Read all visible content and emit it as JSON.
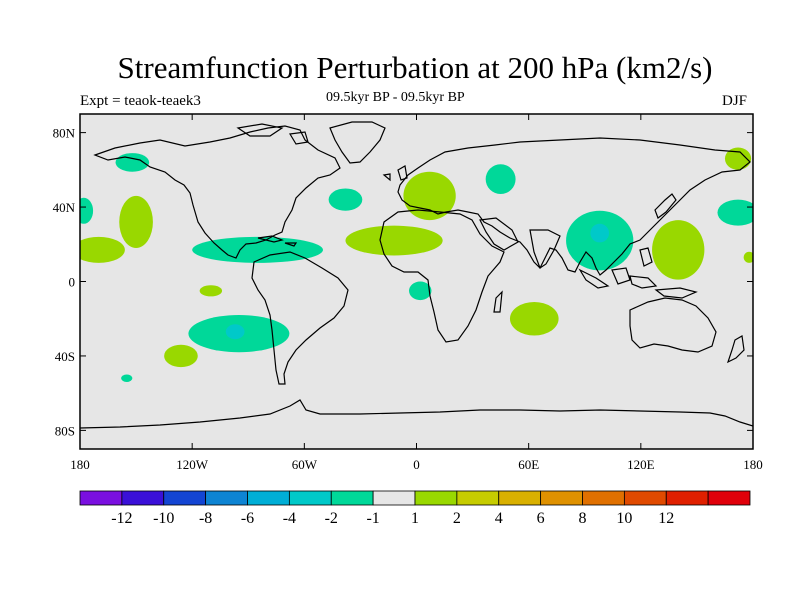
{
  "header": {
    "title": "Streamfunction Perturbation at 200 hPa (km2/s)",
    "left_label": "Expt = teaok-teaek3",
    "center_label": "09.5kyr BP - 09.5kyr BP",
    "right_label": "DJF"
  },
  "axes": {
    "lat_ticks": [
      {
        "label": "80N",
        "lat": 80
      },
      {
        "label": "40N",
        "lat": 40
      },
      {
        "label": "0",
        "lat": 0
      },
      {
        "label": "40S",
        "lat": -40
      },
      {
        "label": "80S",
        "lat": -80
      }
    ],
    "lon_ticks": [
      {
        "label": "180",
        "lon": -180
      },
      {
        "label": "120W",
        "lon": -120
      },
      {
        "label": "60W",
        "lon": -60
      },
      {
        "label": "0",
        "lon": 0
      },
      {
        "label": "60E",
        "lon": 60
      },
      {
        "label": "120E",
        "lon": 120
      },
      {
        "label": "180",
        "lon": 180
      }
    ],
    "lon_range": [
      -180,
      180
    ],
    "lat_range": [
      -90,
      90
    ]
  },
  "colorbar": {
    "colors": [
      "#7a0fe0",
      "#3a10d8",
      "#1345d3",
      "#0e84d3",
      "#00aed6",
      "#00c9c9",
      "#00d899",
      "#e6e6e6",
      "#99d800",
      "#c6cc00",
      "#d9b000",
      "#df9100",
      "#e07000",
      "#e04a00",
      "#e02000",
      "#e0000a"
    ],
    "labels": [
      "-12",
      "-10",
      "-8",
      "-6",
      "-4",
      "-2",
      "-1",
      "1",
      "2",
      "4",
      "6",
      "8",
      "10",
      "12"
    ]
  },
  "anomaly_regions": [
    {
      "name": "Arctic Alaska",
      "level": "-1",
      "color": "#00d899",
      "center": [
        -152,
        64
      ],
      "radius": [
        9,
        5
      ]
    },
    {
      "name": "North Pacific east",
      "level": "1",
      "color": "#99d800",
      "center": [
        -150,
        32
      ],
      "radius": [
        9,
        14
      ]
    },
    {
      "name": "North Pacific west edge",
      "level": "-1",
      "color": "#00d899",
      "center": [
        -178,
        38
      ],
      "radius": [
        5,
        7
      ]
    },
    {
      "name": "Tropical east Pacific",
      "level": "1",
      "color": "#99d800",
      "center": [
        -170,
        17
      ],
      "radius": [
        14,
        7
      ]
    },
    {
      "name": "Central America Caribbean",
      "level": "-1",
      "color": "#00d899",
      "center": [
        -85,
        17
      ],
      "radius": [
        35,
        7
      ]
    },
    {
      "name": "North Atlantic",
      "level": "-1",
      "color": "#00d899",
      "center": [
        -38,
        44
      ],
      "radius": [
        9,
        6
      ]
    },
    {
      "name": "Subtropical Atlantic to North Africa",
      "level": "1",
      "color": "#99d800",
      "center": [
        -12,
        22
      ],
      "radius": [
        26,
        8
      ]
    },
    {
      "name": "Europe",
      "level": "1",
      "color": "#99d800",
      "center": [
        7,
        46
      ],
      "radius": [
        14,
        13
      ]
    },
    {
      "name": "Caspian region",
      "level": "-1",
      "color": "#00d899",
      "center": [
        45,
        55
      ],
      "radius": [
        8,
        8
      ]
    },
    {
      "name": "South Atlantic off Africa",
      "level": "-1",
      "color": "#00d899",
      "center": [
        2,
        -5
      ],
      "radius": [
        6,
        5
      ]
    },
    {
      "name": "Southeast Pacific",
      "level": "-1",
      "color": "#00d899",
      "center": [
        -95,
        -28
      ],
      "radius": [
        27,
        10
      ]
    },
    {
      "name": "Southeast Pacific core",
      "level": "-2",
      "color": "#00c9c9",
      "center": [
        -97,
        -27
      ],
      "radius": [
        5,
        4
      ]
    },
    {
      "name": "East Pacific small",
      "level": "1",
      "color": "#99d800",
      "center": [
        -110,
        -5
      ],
      "radius": [
        6,
        3
      ]
    },
    {
      "name": "South Pacific",
      "level": "1",
      "color": "#99d800",
      "center": [
        -126,
        -40
      ],
      "radius": [
        9,
        6
      ]
    },
    {
      "name": "Southern Pacific small",
      "level": "-1",
      "color": "#00d899",
      "center": [
        -155,
        -52
      ],
      "radius": [
        3,
        2
      ]
    },
    {
      "name": "Indian Ocean",
      "level": "1",
      "color": "#99d800",
      "center": [
        63,
        -20
      ],
      "radius": [
        13,
        9
      ]
    },
    {
      "name": "South Asia",
      "level": "-1",
      "color": "#00d899",
      "center": [
        98,
        22
      ],
      "radius": [
        18,
        16
      ]
    },
    {
      "name": "South Asia core",
      "level": "-2",
      "color": "#00c9c9",
      "center": [
        98,
        26
      ],
      "radius": [
        5,
        5
      ]
    },
    {
      "name": "West Pacific",
      "level": "1",
      "color": "#99d800",
      "center": [
        140,
        17
      ],
      "radius": [
        14,
        16
      ]
    },
    {
      "name": "Northwest Pacific",
      "level": "-1",
      "color": "#00d899",
      "center": [
        172,
        37
      ],
      "radius": [
        11,
        7
      ]
    },
    {
      "name": "East Siberia",
      "level": "1",
      "color": "#99d800",
      "center": [
        172,
        66
      ],
      "radius": [
        7,
        6
      ]
    },
    {
      "name": "Dateline tropics",
      "level": "1",
      "color": "#99d800",
      "center": [
        178,
        13
      ],
      "radius": [
        3,
        3
      ]
    }
  ]
}
